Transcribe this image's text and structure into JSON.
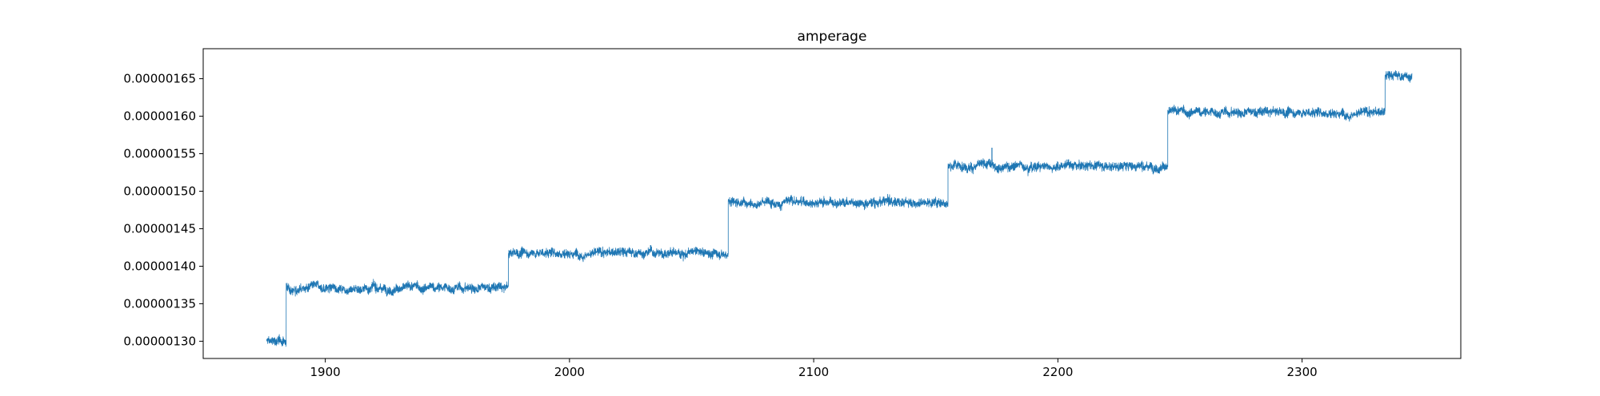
{
  "chart_data": {
    "type": "line",
    "title": "amperage",
    "xlabel": "",
    "ylabel": "",
    "xlim": [
      1850,
      2365
    ],
    "ylim": [
      1.277e-06,
      1.69e-06
    ],
    "x_ticks": [
      1900,
      2000,
      2100,
      2200,
      2300
    ],
    "y_ticks": [
      1.3e-06,
      1.35e-06,
      1.4e-06,
      1.45e-06,
      1.5e-06,
      1.55e-06,
      1.6e-06,
      1.65e-06
    ],
    "x_tick_labels": [
      "1900",
      "2000",
      "2100",
      "2200",
      "2300"
    ],
    "y_tick_labels": [
      "0.00000130",
      "0.00000135",
      "0.00000140",
      "0.00000145",
      "0.00000150",
      "0.00000155",
      "0.00000160",
      "0.00000165"
    ],
    "grid": false,
    "legend": "none",
    "series_color": "#1f77b4",
    "series": [
      {
        "segments": [
          {
            "x_start": 1876,
            "x_end": 1884,
            "level": 1.3e-06,
            "noise": 4e-09
          },
          {
            "x_start": 1884,
            "x_end": 1975,
            "level": 1.371e-06,
            "noise": 4e-09
          },
          {
            "x_start": 1975,
            "x_end": 2065,
            "level": 1.418e-06,
            "noise": 4e-09
          },
          {
            "x_start": 2065,
            "x_end": 2155,
            "level": 1.486e-06,
            "noise": 4e-09
          },
          {
            "x_start": 2155,
            "x_end": 2245,
            "level": 1.534e-06,
            "noise": 4e-09
          },
          {
            "x_start": 2245,
            "x_end": 2334,
            "level": 1.605e-06,
            "noise": 4e-09
          },
          {
            "x_start": 2334,
            "x_end": 2345,
            "level": 1.654e-06,
            "noise": 4e-09
          }
        ],
        "spikes": [
          {
            "x": 2173,
            "y": 1.558e-06
          }
        ]
      }
    ]
  }
}
